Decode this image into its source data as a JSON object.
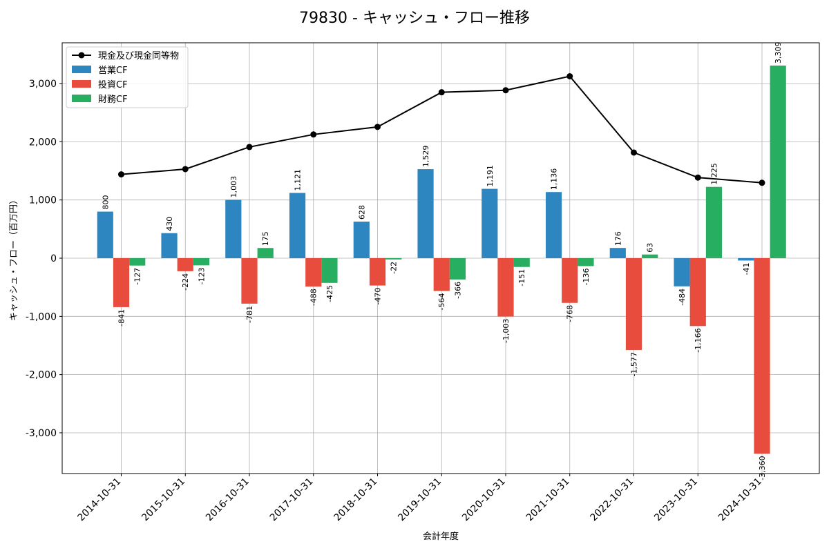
{
  "chart_data": {
    "type": "bar",
    "title": "79830 - キャッシュ・フロー推移",
    "xlabel": "会計年度",
    "ylabel": "キャッシュ・フロー（百万円）",
    "ylim": [
      -3700,
      3700
    ],
    "yticks": [
      -3000,
      -2000,
      -1000,
      0,
      1000,
      2000,
      3000
    ],
    "ytick_labels": [
      "-3,000",
      "-2,000",
      "-1,000",
      "0",
      "1,000",
      "2,000",
      "3,000"
    ],
    "grid": true,
    "legend_position": "top-left",
    "categories": [
      "2014-10-31",
      "2015-10-31",
      "2016-10-31",
      "2017-10-31",
      "2018-10-31",
      "2019-10-31",
      "2020-10-31",
      "2021-10-31",
      "2022-10-31",
      "2023-10-31",
      "2024-10-31"
    ],
    "line": {
      "name": "現金及び現金同等物",
      "color": "#000000",
      "values": [
        1440,
        1530,
        1910,
        2125,
        2255,
        2850,
        2885,
        3125,
        1815,
        1385,
        1295
      ]
    },
    "series": [
      {
        "name": "営業CF",
        "color": "#2e86c1",
        "values": [
          800,
          430,
          1003,
          1121,
          628,
          1529,
          1191,
          1136,
          176,
          -484,
          -41
        ],
        "labels": [
          "800",
          "430",
          "1,003",
          "1,121",
          "628",
          "1,529",
          "1,191",
          "1,136",
          "176",
          "-484",
          "-41"
        ]
      },
      {
        "name": "投資CF",
        "color": "#e74c3c",
        "values": [
          -841,
          -224,
          -781,
          -488,
          -470,
          -564,
          -1003,
          -768,
          -1577,
          -1166,
          -3360
        ],
        "labels": [
          "-841",
          "-224",
          "-781",
          "-488",
          "-470",
          "-564",
          "-1,003",
          "-768",
          "-1,577",
          "-1,166",
          "-3,360"
        ]
      },
      {
        "name": "財務CF",
        "color": "#27ae60",
        "values": [
          -127,
          -123,
          175,
          -425,
          -22,
          -366,
          -151,
          -136,
          63,
          1225,
          3309
        ],
        "labels": [
          "-127",
          "-123",
          "175",
          "-425",
          "-22",
          "-366",
          "-151",
          "-136",
          "63",
          "1,225",
          "3,309"
        ]
      }
    ]
  }
}
